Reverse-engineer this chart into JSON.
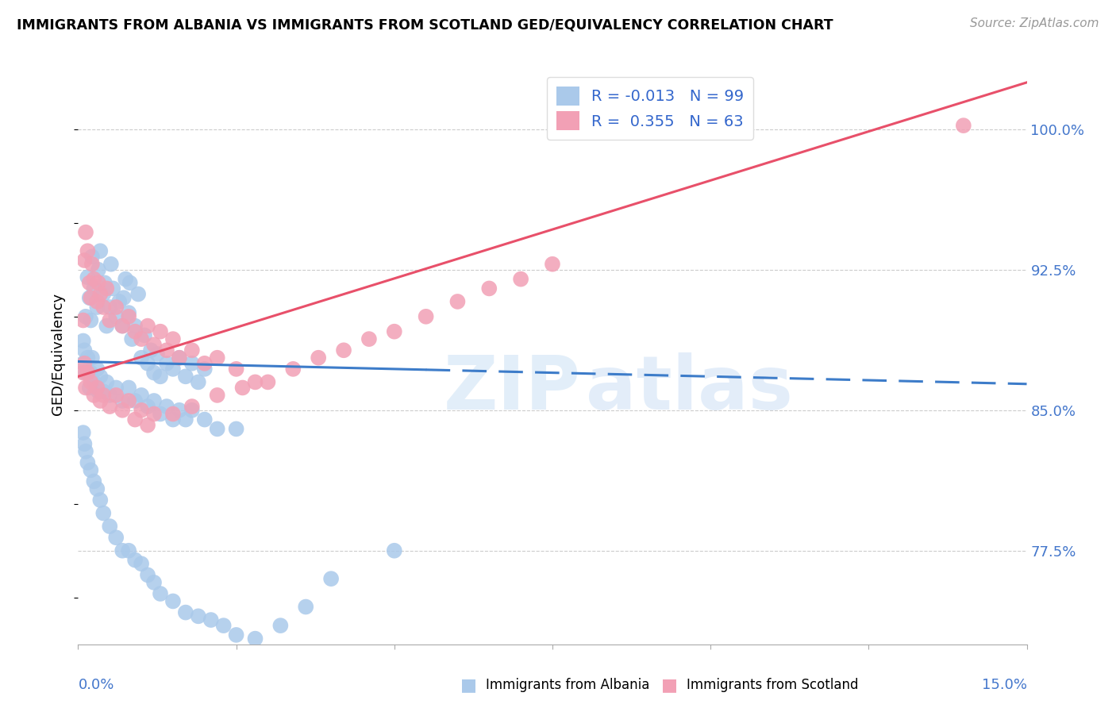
{
  "title": "IMMIGRANTS FROM ALBANIA VS IMMIGRANTS FROM SCOTLAND GED/EQUIVALENCY CORRELATION CHART",
  "source": "Source: ZipAtlas.com",
  "ylabel_label": "GED/Equivalency",
  "legend_albania_r": "-0.013",
  "legend_albania_n": "99",
  "legend_scotland_r": "0.355",
  "legend_scotland_n": "63",
  "albania_color": "#aac9ea",
  "scotland_color": "#f2a0b5",
  "albania_line_color": "#3d7cc9",
  "scotland_line_color": "#e8506a",
  "watermark_zip": "ZIP",
  "watermark_atlas": "atlas",
  "xlim": [
    0.0,
    0.15
  ],
  "ylim": [
    0.725,
    1.035
  ],
  "yticks": [
    0.775,
    0.85,
    0.925,
    1.0
  ],
  "ytick_labels": [
    "77.5%",
    "85.0%",
    "92.5%",
    "100.0%"
  ],
  "xtick_labels": [
    "0.0%",
    "15.0%"
  ],
  "alb_line_x0": 0.0,
  "alb_line_y0": 0.876,
  "alb_line_x1": 0.15,
  "alb_line_y1": 0.864,
  "sco_line_x0": 0.0,
  "sco_line_y0": 0.868,
  "sco_line_x1": 0.15,
  "sco_line_y1": 1.025,
  "albania_x": [
    0.0008,
    0.0012,
    0.0015,
    0.0018,
    0.002,
    0.0022,
    0.0025,
    0.003,
    0.0032,
    0.0035,
    0.004,
    0.0042,
    0.0045,
    0.005,
    0.0052,
    0.0055,
    0.006,
    0.0065,
    0.007,
    0.0072,
    0.0075,
    0.008,
    0.0082,
    0.0085,
    0.009,
    0.0095,
    0.01,
    0.0105,
    0.011,
    0.0115,
    0.012,
    0.0125,
    0.013,
    0.014,
    0.015,
    0.016,
    0.017,
    0.018,
    0.019,
    0.02,
    0.0008,
    0.001,
    0.0012,
    0.0015,
    0.0018,
    0.002,
    0.0022,
    0.0025,
    0.003,
    0.0032,
    0.0035,
    0.004,
    0.0045,
    0.005,
    0.006,
    0.007,
    0.008,
    0.009,
    0.01,
    0.011,
    0.012,
    0.013,
    0.014,
    0.015,
    0.016,
    0.017,
    0.018,
    0.02,
    0.022,
    0.025,
    0.0008,
    0.001,
    0.0012,
    0.0015,
    0.002,
    0.0025,
    0.003,
    0.0035,
    0.004,
    0.005,
    0.006,
    0.007,
    0.008,
    0.009,
    0.01,
    0.011,
    0.012,
    0.013,
    0.015,
    0.017,
    0.019,
    0.021,
    0.023,
    0.025,
    0.028,
    0.032,
    0.036,
    0.04,
    0.05
  ],
  "albania_y": [
    0.887,
    0.9,
    0.921,
    0.91,
    0.898,
    0.932,
    0.915,
    0.905,
    0.925,
    0.935,
    0.912,
    0.918,
    0.895,
    0.905,
    0.928,
    0.915,
    0.9,
    0.908,
    0.895,
    0.91,
    0.92,
    0.902,
    0.918,
    0.888,
    0.895,
    0.912,
    0.878,
    0.89,
    0.875,
    0.882,
    0.87,
    0.88,
    0.868,
    0.875,
    0.872,
    0.878,
    0.868,
    0.875,
    0.865,
    0.872,
    0.875,
    0.882,
    0.87,
    0.878,
    0.862,
    0.87,
    0.878,
    0.865,
    0.872,
    0.86,
    0.868,
    0.86,
    0.865,
    0.858,
    0.862,
    0.855,
    0.862,
    0.855,
    0.858,
    0.852,
    0.855,
    0.848,
    0.852,
    0.845,
    0.85,
    0.845,
    0.85,
    0.845,
    0.84,
    0.84,
    0.838,
    0.832,
    0.828,
    0.822,
    0.818,
    0.812,
    0.808,
    0.802,
    0.795,
    0.788,
    0.782,
    0.775,
    0.775,
    0.77,
    0.768,
    0.762,
    0.758,
    0.752,
    0.748,
    0.742,
    0.74,
    0.738,
    0.735,
    0.73,
    0.728,
    0.735,
    0.745,
    0.76,
    0.775
  ],
  "scotland_x": [
    0.0008,
    0.001,
    0.0012,
    0.0015,
    0.0018,
    0.002,
    0.0022,
    0.0025,
    0.003,
    0.0032,
    0.0035,
    0.004,
    0.0045,
    0.005,
    0.006,
    0.007,
    0.008,
    0.009,
    0.01,
    0.011,
    0.012,
    0.013,
    0.014,
    0.015,
    0.016,
    0.018,
    0.02,
    0.022,
    0.025,
    0.028,
    0.0008,
    0.001,
    0.0012,
    0.0015,
    0.002,
    0.0025,
    0.003,
    0.0035,
    0.004,
    0.005,
    0.006,
    0.007,
    0.008,
    0.009,
    0.01,
    0.011,
    0.012,
    0.015,
    0.018,
    0.022,
    0.026,
    0.03,
    0.034,
    0.038,
    0.042,
    0.046,
    0.05,
    0.055,
    0.06,
    0.065,
    0.07,
    0.075,
    0.14
  ],
  "scotland_y": [
    0.898,
    0.93,
    0.945,
    0.935,
    0.918,
    0.91,
    0.928,
    0.92,
    0.908,
    0.918,
    0.912,
    0.905,
    0.915,
    0.898,
    0.905,
    0.895,
    0.9,
    0.892,
    0.888,
    0.895,
    0.885,
    0.892,
    0.882,
    0.888,
    0.878,
    0.882,
    0.875,
    0.878,
    0.872,
    0.865,
    0.87,
    0.875,
    0.862,
    0.87,
    0.865,
    0.858,
    0.862,
    0.855,
    0.858,
    0.852,
    0.858,
    0.85,
    0.855,
    0.845,
    0.85,
    0.842,
    0.848,
    0.848,
    0.852,
    0.858,
    0.862,
    0.865,
    0.872,
    0.878,
    0.882,
    0.888,
    0.892,
    0.9,
    0.908,
    0.915,
    0.92,
    0.928,
    1.002
  ]
}
